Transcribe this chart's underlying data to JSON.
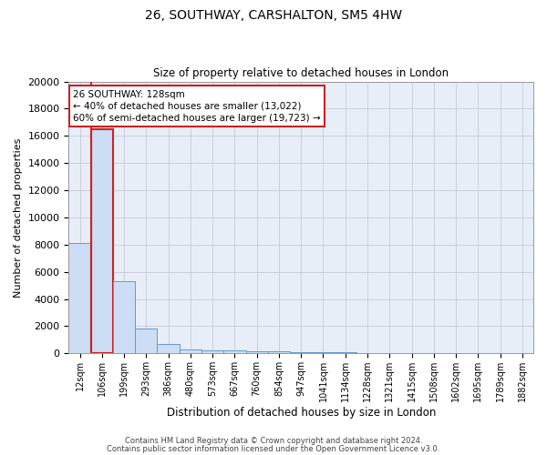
{
  "title1": "26, SOUTHWAY, CARSHALTON, SM5 4HW",
  "title2": "Size of property relative to detached houses in London",
  "xlabel": "Distribution of detached houses by size in London",
  "ylabel": "Number of detached properties",
  "categories": [
    "12sqm",
    "106sqm",
    "199sqm",
    "293sqm",
    "386sqm",
    "480sqm",
    "573sqm",
    "667sqm",
    "760sqm",
    "854sqm",
    "947sqm",
    "1041sqm",
    "1134sqm",
    "1228sqm",
    "1321sqm",
    "1415sqm",
    "1508sqm",
    "1602sqm",
    "1695sqm",
    "1789sqm",
    "1882sqm"
  ],
  "values": [
    8100,
    16500,
    5300,
    1850,
    700,
    300,
    220,
    190,
    180,
    130,
    100,
    80,
    60,
    50,
    40,
    30,
    25,
    20,
    15,
    12,
    10
  ],
  "bar_color": "#ccddf5",
  "bar_edge_color": "#6699cc",
  "highlight_bar_index": 1,
  "highlight_edge_color": "#cc2222",
  "annotation_title": "26 SOUTHWAY: 128sqm",
  "annotation_line1": "← 40% of detached houses are smaller (13,022)",
  "annotation_line2": "60% of semi-detached houses are larger (19,723) →",
  "annotation_box_color": "#ffffff",
  "annotation_edge_color": "#cc2222",
  "grid_color": "#c8c8d8",
  "background_color": "#e8eef8",
  "plot_bg_color": "#e8eef8",
  "fig_bg_color": "#ffffff",
  "ylim": [
    0,
    20000
  ],
  "yticks": [
    0,
    2000,
    4000,
    6000,
    8000,
    10000,
    12000,
    14000,
    16000,
    18000,
    20000
  ],
  "footer1": "Contains HM Land Registry data © Crown copyright and database right 2024.",
  "footer2": "Contains public sector information licensed under the Open Government Licence v3.0."
}
